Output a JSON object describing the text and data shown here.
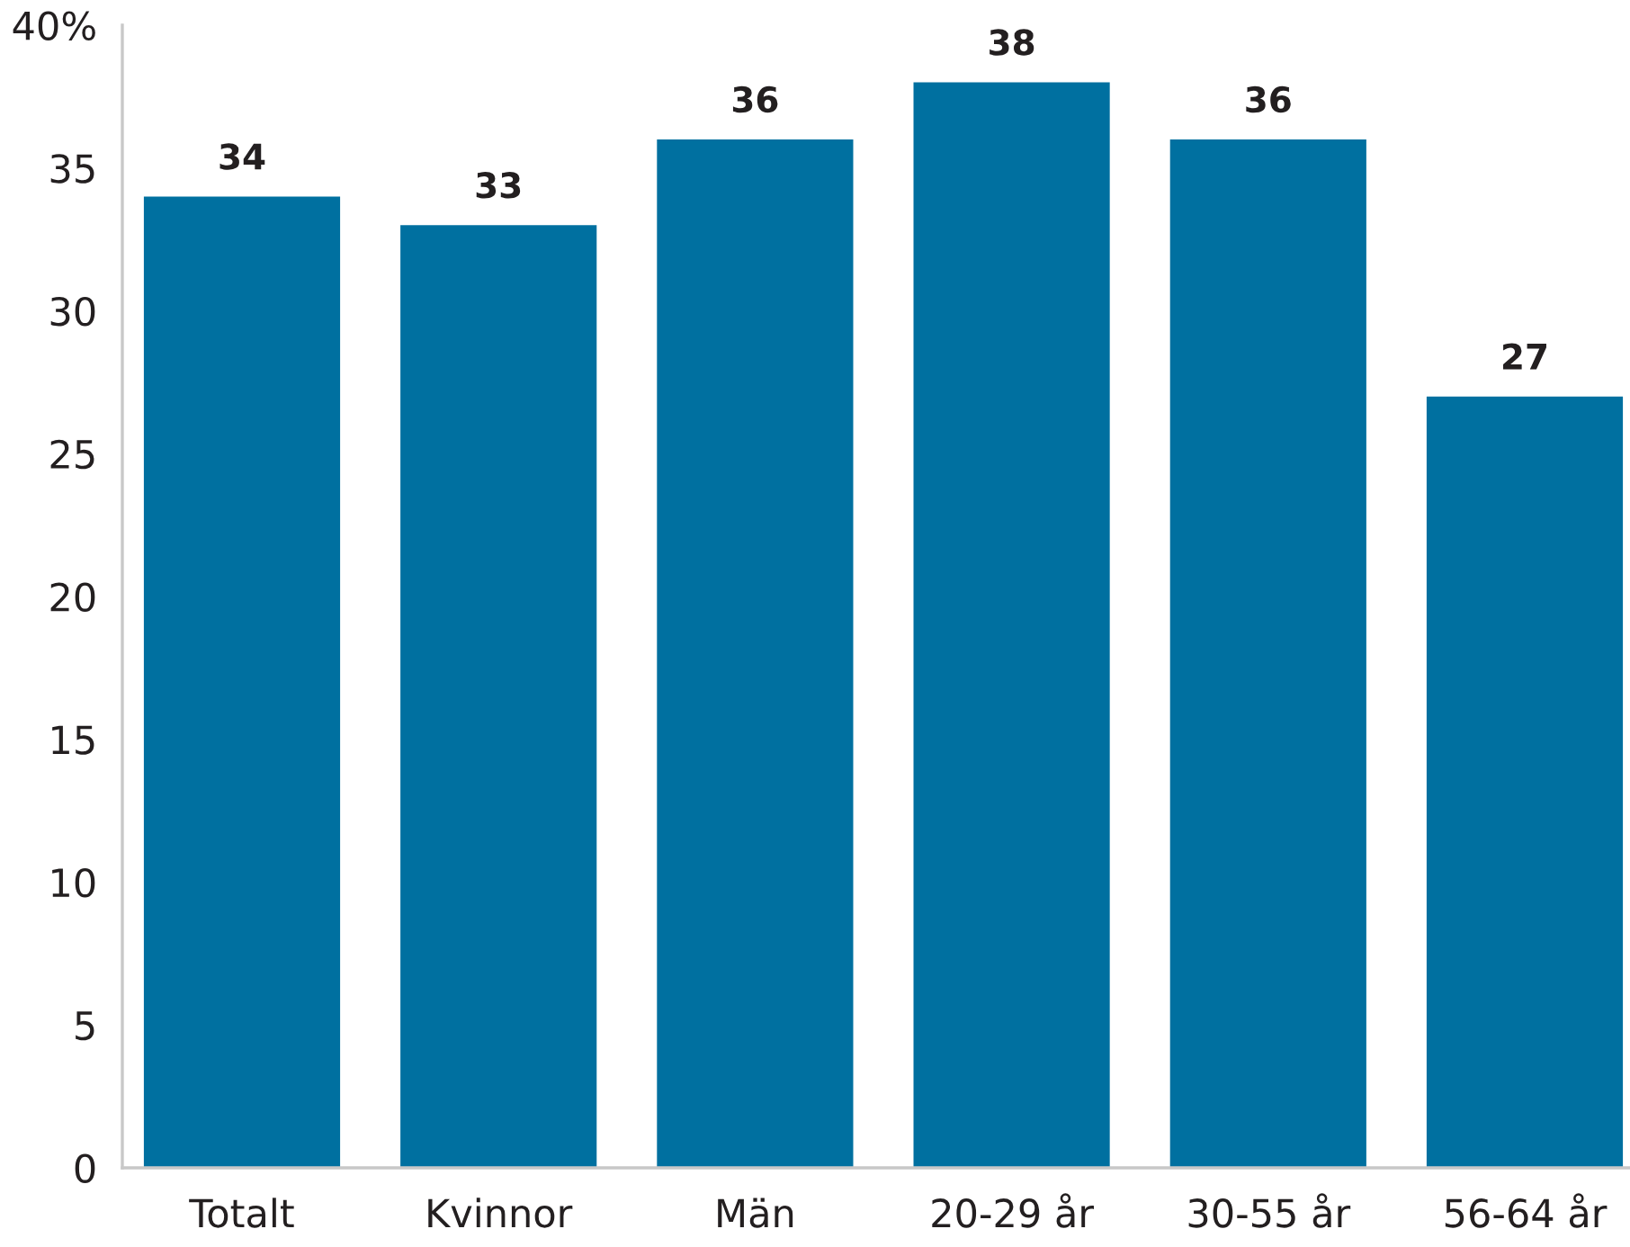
{
  "chart_data": {
    "type": "bar",
    "categories": [
      "Totalt",
      "Kvinnor",
      "Män",
      "20-29 år",
      "30-55 år",
      "56-64 år"
    ],
    "values": [
      34,
      33,
      36,
      38,
      36,
      27
    ],
    "color": "#0070a0",
    "ylim": [
      0,
      40
    ],
    "yticks": [
      0,
      5,
      10,
      15,
      20,
      25,
      30,
      35,
      {
        "value": 40,
        "label": "40%"
      }
    ],
    "data_labels": true
  }
}
